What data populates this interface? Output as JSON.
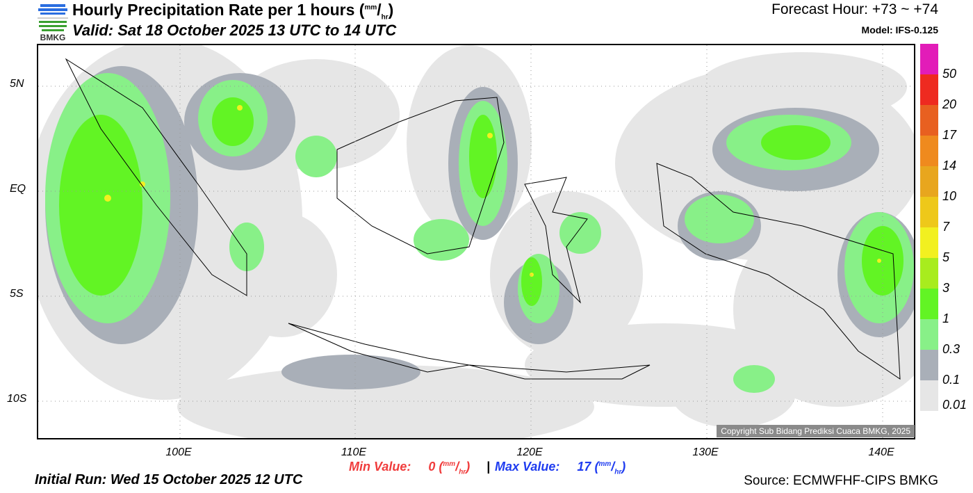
{
  "header": {
    "logo_text": "BMKG",
    "title": "Hourly Precipitation Rate per 1 hours",
    "unit_num": "mm",
    "unit_den": "hr",
    "valid": "Valid: Sat 18 October 2025 13 UTC to 14 UTC",
    "forecast_hour": "Forecast Hour: +73 ~ +74",
    "model": "Model: IFS-0.125"
  },
  "map": {
    "lon_range": [
      92,
      142
    ],
    "lat_range": [
      -12,
      7
    ],
    "y_ticks": [
      "5N",
      "EQ",
      "5S",
      "10S"
    ],
    "x_ticks": [
      "100E",
      "110E",
      "120E",
      "130E",
      "140E"
    ],
    "copyright": "Copyright Sub Bidang Prediksi Cuaca BMKG, 2025"
  },
  "legend": {
    "colors": [
      "#e21cb8",
      "#ee2a20",
      "#e86020",
      "#ef8a1e",
      "#e8a61e",
      "#eec81a",
      "#f2f020",
      "#a8ec1e",
      "#62f424",
      "#88f088",
      "#a9afb8",
      "#e6e6e6"
    ],
    "labels": [
      "50",
      "20",
      "17",
      "14",
      "10",
      "7",
      "5",
      "3",
      "1",
      "0.3",
      "0.1",
      "0.01"
    ]
  },
  "footer": {
    "min_label": "Min Value:",
    "min_value": "0",
    "separator": "|",
    "max_label": "Max Value:",
    "max_value": "17",
    "initial_run": "Initial Run: Wed 15 October 2025 12 UTC",
    "source": "Source: ECMWFHF-CIPS BMKG"
  }
}
